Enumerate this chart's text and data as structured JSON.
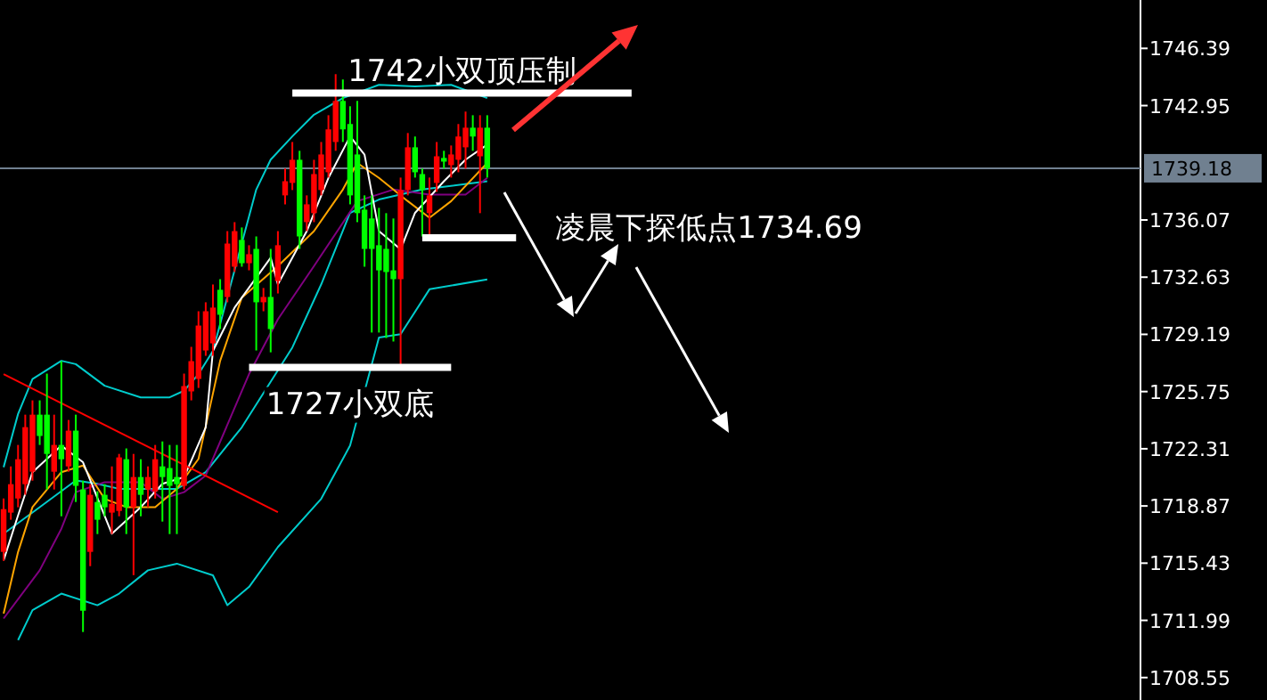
{
  "chart_data": {
    "type": "candlestick",
    "categories": [
      null,
      null,
      null,
      null,
      null,
      null,
      null,
      null,
      null,
      null,
      null,
      null,
      null,
      null,
      null,
      null,
      null,
      null,
      null,
      null,
      null,
      null,
      null,
      null,
      null,
      null,
      null,
      null,
      null,
      null,
      null,
      null,
      null,
      null,
      null,
      null,
      null,
      null,
      null,
      null,
      null,
      null,
      null,
      null,
      null,
      null,
      null,
      null,
      null,
      null,
      null,
      null,
      null,
      null,
      null,
      null,
      null,
      null,
      null,
      null,
      null,
      null,
      null,
      null,
      null,
      null,
      null,
      null,
      null,
      null,
      null,
      null,
      null,
      null,
      null,
      null,
      null,
      null,
      null,
      null,
      null,
      null,
      null,
      null,
      null,
      null,
      null,
      null,
      null,
      null,
      null,
      null,
      null,
      null,
      null,
      null,
      null,
      null,
      null,
      null,
      null,
      null,
      null,
      null,
      null,
      null,
      null,
      null,
      null,
      null,
      null,
      null,
      null,
      null,
      null,
      null,
      null,
      null,
      null,
      null,
      null,
      null,
      null,
      null,
      null,
      null,
      null,
      null,
      null,
      null,
      null,
      null,
      null,
      null,
      null,
      null,
      null,
      null,
      null,
      null,
      null,
      null,
      null,
      null,
      null,
      null,
      null,
      null,
      null,
      null,
      null,
      null,
      null,
      null,
      null,
      null,
      null,
      null
    ],
    "ohlc": [
      [
        1716.11,
        1719.32,
        1715.57,
        1718.68
      ],
      [
        1718.47,
        1721.25,
        1718.04,
        1720.18
      ],
      [
        1719.32,
        1722.54,
        1718.79,
        1721.68
      ],
      [
        1720.18,
        1724.36,
        1719.54,
        1723.61
      ],
      [
        1720.93,
        1725.22,
        1720.39,
        1724.36
      ],
      [
        1724.36,
        1725.22,
        1722.54,
        1723.08
      ],
      [
        1724.36,
        1726.83,
        1719.86,
        1722.0
      ],
      [
        1720.93,
        1724.36,
        1719.86,
        1722.54
      ],
      [
        1722.54,
        1727.58,
        1718.25,
        1721.68
      ],
      [
        1721.25,
        1724.04,
        1720.93,
        1723.4
      ],
      [
        1723.4,
        1724.36,
        1719.11,
        1720.08
      ],
      [
        1719.86,
        1720.39,
        1711.29,
        1712.57
      ],
      [
        1716.11,
        1720.18,
        1715.25,
        1719.54
      ],
      [
        1719.11,
        1719.75,
        1717.18,
        1718.04
      ],
      [
        1719.54,
        1720.18,
        1718.25,
        1718.79
      ],
      [
        1718.47,
        1721.25,
        1717.18,
        1719.0
      ],
      [
        1718.57,
        1722.0,
        1718.25,
        1721.79
      ],
      [
        1721.68,
        1722.33,
        1717.18,
        1718.79
      ],
      [
        1718.79,
        1722.0,
        1714.71,
        1720.61
      ],
      [
        1720.61,
        1721.68,
        1718.25,
        1719.54
      ],
      [
        1719.86,
        1721.25,
        1718.79,
        1720.61
      ],
      [
        1719.75,
        1722.54,
        1719.32,
        1721.68
      ],
      [
        1721.25,
        1722.75,
        1717.93,
        1720.61
      ],
      [
        1721.15,
        1722.54,
        1717.18,
        1720.08
      ],
      [
        1720.61,
        1722.54,
        1717.18,
        1720.18
      ],
      [
        1720.08,
        1726.83,
        1719.86,
        1726.08
      ],
      [
        1725.76,
        1728.44,
        1725.22,
        1727.58
      ],
      [
        1726.51,
        1730.58,
        1725.97,
        1729.72
      ],
      [
        1728.22,
        1731.12,
        1727.9,
        1730.58
      ],
      [
        1728.65,
        1732.19,
        1727.9,
        1730.8
      ],
      [
        1731.87,
        1732.51,
        1729.51,
        1730.37
      ],
      [
        1731.44,
        1735.4,
        1731.12,
        1734.65
      ],
      [
        1733.26,
        1735.94,
        1732.94,
        1735.4
      ],
      [
        1734.87,
        1735.62,
        1733.26,
        1733.47
      ],
      [
        1733.47,
        1734.55,
        1733.04,
        1734.01
      ],
      [
        1734.33,
        1735.08,
        1728.22,
        1731.12
      ],
      [
        1731.12,
        1731.98,
        1730.58,
        1731.44
      ],
      [
        1731.44,
        1734.33,
        1728.11,
        1729.51
      ],
      [
        1732.4,
        1735.4,
        1731.65,
        1734.55
      ],
      [
        1737.55,
        1739.16,
        1737.01,
        1738.4
      ],
      [
        1738.3,
        1740.76,
        1737.87,
        1739.69
      ],
      [
        1739.69,
        1740.23,
        1734.33,
        1735.08
      ],
      [
        1735.94,
        1737.55,
        1735.4,
        1737.01
      ],
      [
        1736.48,
        1739.69,
        1735.94,
        1738.83
      ],
      [
        1737.87,
        1740.76,
        1737.55,
        1740.01
      ],
      [
        1738.94,
        1742.37,
        1738.62,
        1741.52
      ],
      [
        1740.76,
        1744.84,
        1740.23,
        1743.23
      ],
      [
        1743.23,
        1744.52,
        1740.76,
        1741.52
      ],
      [
        1741.84,
        1742.91,
        1737.01,
        1737.55
      ],
      [
        1740.01,
        1743.23,
        1735.94,
        1736.48
      ],
      [
        1736.69,
        1737.55,
        1733.26,
        1734.33
      ],
      [
        1736.16,
        1737.55,
        1729.3,
        1734.33
      ],
      [
        1734.55,
        1736.8,
        1729.3,
        1733.04
      ],
      [
        1734.33,
        1736.48,
        1728.97,
        1732.94
      ],
      [
        1733.04,
        1736.16,
        1728.76,
        1732.51
      ],
      [
        1732.51,
        1738.62,
        1727.36,
        1737.87
      ],
      [
        1737.87,
        1741.3,
        1737.55,
        1740.44
      ],
      [
        1740.44,
        1741.09,
        1738.62,
        1738.94
      ],
      [
        1738.83,
        1739.16,
        1735.08,
        1737.87
      ],
      [
        1736.48,
        1738.62,
        1735.08,
        1737.55
      ],
      [
        1738.3,
        1740.76,
        1737.76,
        1739.9
      ],
      [
        1739.8,
        1740.23,
        1739.16,
        1739.58
      ],
      [
        1739.37,
        1740.55,
        1738.62,
        1740.01
      ],
      [
        1739.69,
        1741.84,
        1738.94,
        1741.09
      ],
      [
        1740.44,
        1742.59,
        1739.16,
        1741.62
      ],
      [
        1741.62,
        1742.37,
        1740.23,
        1741.09
      ],
      [
        1739.9,
        1742.37,
        1736.48,
        1741.62
      ],
      [
        1741.62,
        1742.37,
        1738.62,
        1739.18
      ],
      null,
      null,
      null,
      null,
      null,
      null,
      null,
      null,
      null,
      null,
      null,
      null,
      null,
      null,
      null,
      null,
      null,
      null,
      null,
      null,
      null,
      null,
      null,
      null,
      null,
      null,
      null,
      null,
      null,
      null,
      null,
      null,
      null,
      null,
      null,
      null,
      null,
      null,
      null,
      null,
      null,
      null,
      null,
      null,
      null,
      null,
      null,
      null,
      null,
      null,
      null,
      null,
      null,
      null,
      null,
      null,
      null,
      null,
      null,
      null,
      null,
      null,
      null,
      null,
      null,
      null,
      null,
      null,
      null,
      null,
      null,
      null,
      null,
      null,
      null,
      null,
      null,
      null,
      null,
      null,
      null,
      null,
      null,
      null,
      null,
      null,
      null,
      null,
      null,
      null
    ],
    "series": [
      {
        "type": "line",
        "color": "#00cccc",
        "values": [
          1721.2,
          null,
          1724.4,
          null,
          1726.5,
          null,
          null,
          null,
          1727.6,
          null,
          1727.4,
          null,
          null,
          null,
          1726.1,
          null,
          null,
          null,
          null,
          1725.4,
          null,
          null,
          null,
          1725.4,
          null,
          1725.8,
          null,
          1726.8,
          null,
          1728.2,
          null,
          null,
          null,
          null,
          null,
          1737.9,
          null,
          1739.7,
          null,
          null,
          1741.1,
          null,
          null,
          1742.4,
          null,
          null,
          null,
          1743.4,
          null,
          null,
          null,
          null,
          1744.2,
          null,
          null,
          null,
          null,
          1744.1,
          null,
          null,
          null,
          null,
          1744.2,
          null,
          null,
          null,
          null,
          1743.4,
          null,
          null,
          null,
          null,
          null,
          null,
          null,
          null,
          null,
          null,
          null,
          null,
          null,
          null,
          null,
          null,
          null,
          null,
          null,
          null,
          null,
          null,
          null,
          null,
          null,
          null,
          null,
          null,
          null,
          null,
          null,
          null,
          null,
          null,
          null,
          null,
          null,
          null,
          null,
          null,
          null,
          null,
          null,
          null,
          null,
          null,
          null,
          null,
          null,
          null,
          null,
          null,
          null,
          null,
          null,
          null,
          null,
          null,
          null,
          null,
          null,
          null,
          null,
          null,
          null,
          null,
          null,
          null,
          null,
          null,
          null,
          null,
          null,
          null,
          null,
          null,
          null,
          null,
          null,
          null,
          null,
          null,
          null,
          null,
          null,
          null,
          null,
          null,
          null,
          null
        ]
      },
      {
        "type": "line",
        "color": "#00cccc",
        "values": [
          1717.2,
          null,
          null,
          null,
          null,
          1718.8,
          null,
          null,
          null,
          null,
          1720.4,
          null,
          null,
          1720.2,
          null,
          null,
          1719.9,
          null,
          null,
          null,
          null,
          null,
          null,
          null,
          1719.9,
          null,
          null,
          null,
          1720.9,
          null,
          null,
          null,
          null,
          1723.6,
          null,
          null,
          null,
          null,
          null,
          null,
          1728.4,
          null,
          null,
          null,
          1732.2,
          null,
          null,
          null,
          1736.5,
          null,
          null,
          null,
          1737.3,
          null,
          null,
          null,
          null,
          null,
          1737.9,
          null,
          null,
          null,
          null,
          null,
          null,
          null,
          null,
          1738.4,
          null,
          null,
          null,
          null,
          null,
          null,
          null,
          null,
          null,
          null,
          null,
          null,
          null,
          null,
          null,
          null,
          null,
          null,
          null,
          null,
          null,
          null,
          null,
          null,
          null,
          null,
          null,
          null,
          null,
          null,
          null,
          null,
          null,
          null,
          null,
          null,
          null,
          null,
          null,
          null,
          null,
          null,
          null,
          null,
          null,
          null,
          null,
          null,
          null,
          null,
          null,
          null,
          null,
          null,
          null,
          null,
          null,
          null,
          null,
          null,
          null,
          null,
          null,
          null,
          null,
          null,
          null,
          null,
          null,
          null,
          null,
          null,
          null,
          null,
          null,
          null,
          null,
          null,
          null,
          null,
          null,
          null,
          null,
          null,
          null,
          null,
          null,
          null,
          null,
          null
        ]
      },
      {
        "type": "line",
        "color": "#00cccc",
        "values": [
          null,
          null,
          1710.8,
          null,
          1712.6,
          null,
          null,
          null,
          1713.6,
          null,
          null,
          null,
          null,
          1712.9,
          null,
          null,
          1713.6,
          null,
          null,
          null,
          1715.0,
          null,
          null,
          null,
          1715.4,
          null,
          null,
          null,
          null,
          1714.7,
          null,
          1712.9,
          null,
          null,
          1714.0,
          null,
          null,
          null,
          1716.4,
          null,
          null,
          null,
          null,
          null,
          1719.3,
          null,
          null,
          null,
          1722.5,
          null,
          null,
          null,
          1729.0,
          null,
          null,
          1729.2,
          null,
          null,
          null,
          1731.9,
          null,
          null,
          null,
          null,
          null,
          null,
          null,
          1732.5,
          null,
          null,
          null,
          null,
          null,
          null,
          null,
          null,
          null,
          null,
          null,
          null,
          null,
          null,
          null,
          null,
          null,
          null,
          null,
          null,
          null,
          null,
          null,
          null,
          null,
          null,
          null,
          null,
          null,
          null,
          null,
          null,
          null,
          null,
          null,
          null,
          null,
          null,
          null,
          null,
          null,
          null,
          null,
          null,
          null,
          null,
          null,
          null,
          null,
          null,
          null,
          null,
          null,
          null,
          null,
          null,
          null,
          null,
          null,
          null,
          null,
          null,
          null,
          null,
          null,
          null,
          null,
          null,
          null,
          null,
          null,
          null,
          null,
          null,
          null,
          null,
          null,
          null,
          null,
          null,
          null,
          null,
          null,
          null,
          null,
          null,
          null,
          null,
          null,
          null
        ]
      },
      {
        "type": "line",
        "color": "#800080",
        "values": [
          1712.1,
          null,
          null,
          null,
          null,
          1715.0,
          null,
          null,
          1717.5,
          null,
          1719.7,
          null,
          null,
          null,
          1720.3,
          null,
          null,
          null,
          null,
          1720.3,
          null,
          null,
          1719.3,
          null,
          null,
          1719.7,
          null,
          null,
          1720.7,
          null,
          null,
          null,
          null,
          null,
          1726.8,
          null,
          null,
          null,
          1730.1,
          null,
          null,
          null,
          null,
          1733.3,
          null,
          null,
          null,
          null,
          null,
          1737.2,
          null,
          null,
          null,
          null,
          1737.9,
          null,
          null,
          null,
          null,
          1737.6,
          null,
          null,
          null,
          null,
          1737.6,
          null,
          null,
          1738.6,
          null,
          null,
          null,
          null,
          null,
          null,
          null,
          null,
          null,
          null,
          null,
          null,
          null,
          null,
          null,
          null,
          null,
          null,
          null,
          null,
          null,
          null,
          null,
          null,
          null,
          null,
          null,
          null,
          null,
          null,
          null,
          null,
          null,
          null,
          null,
          null,
          null,
          null,
          null,
          null,
          null,
          null,
          null,
          null,
          null,
          null,
          null,
          null,
          null,
          null,
          null,
          null,
          null,
          null,
          null,
          null,
          null,
          null,
          null,
          null,
          null,
          null,
          null,
          null,
          null,
          null,
          null,
          null,
          null,
          null,
          null,
          null,
          null,
          null,
          null,
          null,
          null,
          null,
          null,
          null,
          null,
          null,
          null,
          null,
          null,
          null,
          null,
          null,
          null,
          null
        ]
      },
      {
        "type": "line",
        "color": "#ffa500",
        "values": [
          1712.4,
          null,
          1716.1,
          null,
          1718.8,
          null,
          null,
          null,
          1720.9,
          null,
          null,
          1721.3,
          null,
          null,
          1719.3,
          null,
          null,
          1718.8,
          null,
          null,
          null,
          1718.8,
          null,
          null,
          1719.9,
          null,
          null,
          1721.7,
          null,
          null,
          1727.6,
          null,
          null,
          1731.4,
          null,
          null,
          null,
          null,
          1733.3,
          null,
          null,
          null,
          null,
          1735.4,
          null,
          null,
          null,
          1737.9,
          null,
          1739.5,
          null,
          null,
          1738.6,
          null,
          null,
          null,
          1737.2,
          null,
          null,
          1736.2,
          null,
          null,
          1737.2,
          null,
          null,
          null,
          null,
          1739.5,
          null,
          null,
          null,
          null,
          null,
          null,
          null,
          null,
          null,
          null,
          null,
          null,
          null,
          null,
          null,
          null,
          null,
          null,
          null,
          null,
          null,
          null,
          null,
          null,
          null,
          null,
          null,
          null,
          null,
          null,
          null,
          null,
          null,
          null,
          null,
          null,
          null,
          null,
          null,
          null,
          null,
          null,
          null,
          null,
          null,
          null,
          null,
          null,
          null,
          null,
          null,
          null,
          null,
          null,
          null,
          null,
          null,
          null,
          null,
          null,
          null,
          null,
          null,
          null,
          null,
          null,
          null,
          null,
          null,
          null,
          null,
          null,
          null,
          null,
          null,
          null,
          null,
          null,
          null,
          null,
          null,
          null,
          null,
          null,
          null,
          null,
          null,
          null,
          null,
          null
        ]
      },
      {
        "type": "line",
        "color": "#ffffff",
        "values": [
          1715.6,
          null,
          1718.3,
          null,
          1720.9,
          null,
          null,
          null,
          1722.5,
          null,
          null,
          1721.5,
          null,
          null,
          null,
          1717.2,
          null,
          null,
          null,
          1718.8,
          null,
          null,
          1720.2,
          null,
          null,
          1720.6,
          null,
          null,
          1723.6,
          1728.2,
          null,
          null,
          1730.8,
          null,
          null,
          null,
          null,
          1733.8,
          1732.2,
          null,
          null,
          null,
          1735.4,
          null,
          null,
          1738.6,
          null,
          null,
          1741.1,
          null,
          1740.0,
          null,
          1735.4,
          null,
          null,
          1734.3,
          null,
          1736.5,
          null,
          null,
          null,
          1738.4,
          null,
          null,
          1739.7,
          null,
          null,
          1740.6,
          null,
          null,
          null,
          null,
          null,
          null,
          null,
          null,
          null,
          null,
          null,
          null,
          null,
          null,
          null,
          null,
          null,
          null,
          null,
          null,
          null,
          null,
          null,
          null,
          null,
          null,
          null,
          null,
          null,
          null,
          null,
          null,
          null,
          null,
          null,
          null,
          null,
          null,
          null,
          null,
          null,
          null,
          null,
          null,
          null,
          null,
          null,
          null,
          null,
          null,
          null,
          null,
          null,
          null,
          null,
          null,
          null,
          null,
          null,
          null,
          null,
          null,
          null,
          null,
          null,
          null,
          null,
          null,
          null,
          null,
          null,
          null,
          null,
          null,
          null,
          null,
          null,
          null,
          null,
          null,
          null,
          null,
          null,
          null,
          null,
          null,
          null,
          null,
          null,
          null
        ]
      },
      {
        "type": "line",
        "color": "#ff0000",
        "values": [
          1726.8,
          null,
          null,
          null,
          null,
          null,
          null,
          null,
          null,
          null,
          null,
          null,
          null,
          null,
          null,
          null,
          null,
          null,
          null,
          null,
          null,
          null,
          null,
          null,
          null,
          null,
          null,
          null,
          null,
          null,
          null,
          null,
          null,
          null,
          null,
          null,
          null,
          null,
          1718.5,
          null,
          null,
          null,
          null,
          null,
          null,
          null,
          null,
          null,
          null,
          null,
          null,
          null,
          null,
          null,
          null,
          null,
          null,
          null,
          null,
          null,
          null,
          null,
          null,
          null,
          null,
          null,
          null,
          null,
          null,
          null,
          null,
          null,
          null,
          null,
          null,
          null,
          null,
          null,
          null,
          null,
          null,
          null,
          null,
          null,
          null,
          null,
          null,
          null,
          null,
          null,
          null,
          null,
          null,
          null,
          null,
          null,
          null,
          null,
          null,
          null,
          null,
          null,
          null,
          null,
          null,
          null,
          null,
          null,
          null,
          null,
          null,
          null,
          null,
          null,
          null,
          null,
          null,
          null,
          null,
          null,
          null,
          null,
          null,
          null,
          null,
          null,
          null,
          null,
          null,
          null,
          null,
          null,
          null,
          null,
          null,
          null,
          null,
          null,
          null,
          null,
          null,
          null,
          null,
          null,
          null,
          null,
          null,
          null,
          null,
          null,
          null,
          null,
          null,
          null,
          null,
          null,
          null,
          null
        ]
      },
      {
        "type": "line",
        "color": "#ffffff",
        "name": "1742小双顶压制",
        "values": [
          null,
          null,
          null,
          null,
          null,
          null,
          null,
          null,
          null,
          null,
          null,
          null,
          null,
          null,
          null,
          null,
          null,
          null,
          null,
          null,
          null,
          null,
          null,
          null,
          null,
          null,
          null,
          null,
          null,
          null,
          null,
          null,
          null,
          null,
          null,
          null,
          null,
          null,
          null,
          null,
          1743.7,
          1743.7,
          1743.7,
          1743.7,
          1743.7,
          1743.7,
          1743.7,
          1743.7,
          1743.7,
          1743.7,
          1743.7,
          1743.7,
          1743.7,
          1743.7,
          1743.7,
          1743.7,
          1743.7,
          1743.7,
          1743.7,
          1743.7,
          1743.7,
          1743.7,
          1743.7,
          1743.7,
          1743.7,
          1743.7,
          1743.7,
          1743.7,
          1743.7,
          1743.7,
          1743.7,
          1743.7,
          1743.7,
          1743.7,
          1743.7,
          1743.7,
          1743.7,
          1743.7,
          1743.7,
          1743.7,
          1743.7,
          1743.7,
          1743.7,
          1743.7,
          1743.7,
          1743.7,
          1743.7,
          1743.7,
          null,
          null,
          null,
          null,
          null,
          null,
          null,
          null,
          null,
          null,
          null,
          null,
          null,
          null,
          null,
          null,
          null,
          null,
          null,
          null,
          null,
          null,
          null,
          null,
          null,
          null,
          null,
          null,
          null,
          null,
          null,
          null,
          null,
          null,
          null,
          null,
          null,
          null,
          null,
          null,
          null,
          null,
          null,
          null,
          null,
          null,
          null,
          null,
          null,
          null,
          null,
          null,
          null,
          null,
          null,
          null,
          null,
          null,
          null,
          null,
          null,
          null,
          null,
          null,
          null,
          null,
          null,
          null,
          null,
          null
        ]
      },
      {
        "type": "line",
        "color": "#ffffff",
        "name": "1727小双底",
        "values": [
          null,
          null,
          null,
          null,
          null,
          null,
          null,
          null,
          null,
          null,
          null,
          null,
          null,
          null,
          null,
          null,
          null,
          null,
          null,
          null,
          null,
          null,
          null,
          null,
          null,
          null,
          null,
          null,
          null,
          null,
          null,
          null,
          null,
          null,
          1727.2,
          1727.2,
          1727.2,
          1727.2,
          1727.2,
          1727.2,
          1727.2,
          1727.2,
          1727.2,
          1727.2,
          1727.2,
          1727.2,
          1727.2,
          1727.2,
          1727.2,
          1727.2,
          1727.2,
          1727.2,
          1727.2,
          1727.2,
          1727.2,
          1727.2,
          1727.2,
          1727.2,
          1727.2,
          1727.2,
          1727.2,
          1727.2,
          1727.2,
          null,
          null,
          null,
          null,
          null,
          null,
          null,
          null,
          null,
          null,
          null,
          null,
          null,
          null,
          null,
          null,
          null,
          null,
          null,
          null,
          null,
          null,
          null,
          null,
          null,
          null,
          null,
          null,
          null,
          null,
          null,
          null,
          null,
          null,
          null,
          null,
          null,
          null,
          null,
          null,
          null,
          null,
          null,
          null,
          null,
          null,
          null,
          null,
          null,
          null,
          null,
          null,
          null,
          null,
          null,
          null,
          null,
          null,
          null,
          null,
          null,
          null,
          null,
          null,
          null,
          null,
          null,
          null,
          null,
          null,
          null,
          null,
          null,
          null,
          null,
          null,
          null,
          null,
          null,
          null,
          null,
          null,
          null,
          null,
          null,
          null,
          null,
          null,
          null,
          null,
          null,
          null,
          null,
          null,
          null
        ]
      },
      {
        "type": "line",
        "color": "#ffffff",
        "name": "凌晨下探低点1734.69",
        "values": [
          null,
          null,
          null,
          null,
          null,
          null,
          null,
          null,
          null,
          null,
          null,
          null,
          null,
          null,
          null,
          null,
          null,
          null,
          null,
          null,
          null,
          null,
          null,
          null,
          null,
          null,
          null,
          null,
          null,
          null,
          null,
          null,
          null,
          null,
          null,
          null,
          null,
          null,
          null,
          null,
          null,
          null,
          null,
          null,
          null,
          null,
          null,
          null,
          null,
          null,
          null,
          null,
          null,
          null,
          null,
          null,
          null,
          null,
          1735.0,
          1735.0,
          1735.0,
          1735.0,
          1735.0,
          1735.0,
          1735.0,
          1735.0,
          1735.0,
          1735.0,
          1735.0,
          1735.0,
          1735.0,
          1735.0,
          null,
          null,
          null,
          null,
          null,
          null,
          null,
          null,
          null,
          null,
          null,
          null,
          null,
          null,
          null,
          null,
          null,
          null,
          null,
          null,
          null,
          null,
          null,
          null,
          null,
          null,
          null,
          null,
          null,
          null,
          null,
          null,
          null,
          null,
          null,
          null,
          null,
          null,
          null,
          null,
          null,
          null,
          null,
          null,
          null,
          null,
          null,
          null,
          null,
          null,
          null,
          null,
          null,
          null,
          null,
          null,
          null,
          null,
          null,
          null,
          null,
          null,
          null,
          null,
          null,
          null,
          null,
          null,
          null,
          null,
          null,
          null,
          null,
          null,
          null,
          null,
          null,
          null,
          null,
          null,
          null,
          null,
          null,
          null,
          null,
          null
        ]
      }
    ],
    "ylim": [
      1707.2,
      1749.3
    ],
    "yticks": [
      1746.39,
      1742.95,
      1736.07,
      1732.63,
      1729.19,
      1725.75,
      1722.31,
      1718.87,
      1715.43,
      1711.99,
      1708.55
    ],
    "ref_lines": [
      {
        "axis": "y",
        "value": 1739.18,
        "label": "1739.18",
        "color": "#708090"
      }
    ],
    "tick_labels": "y",
    "grid": false,
    "legend": false
  }
}
